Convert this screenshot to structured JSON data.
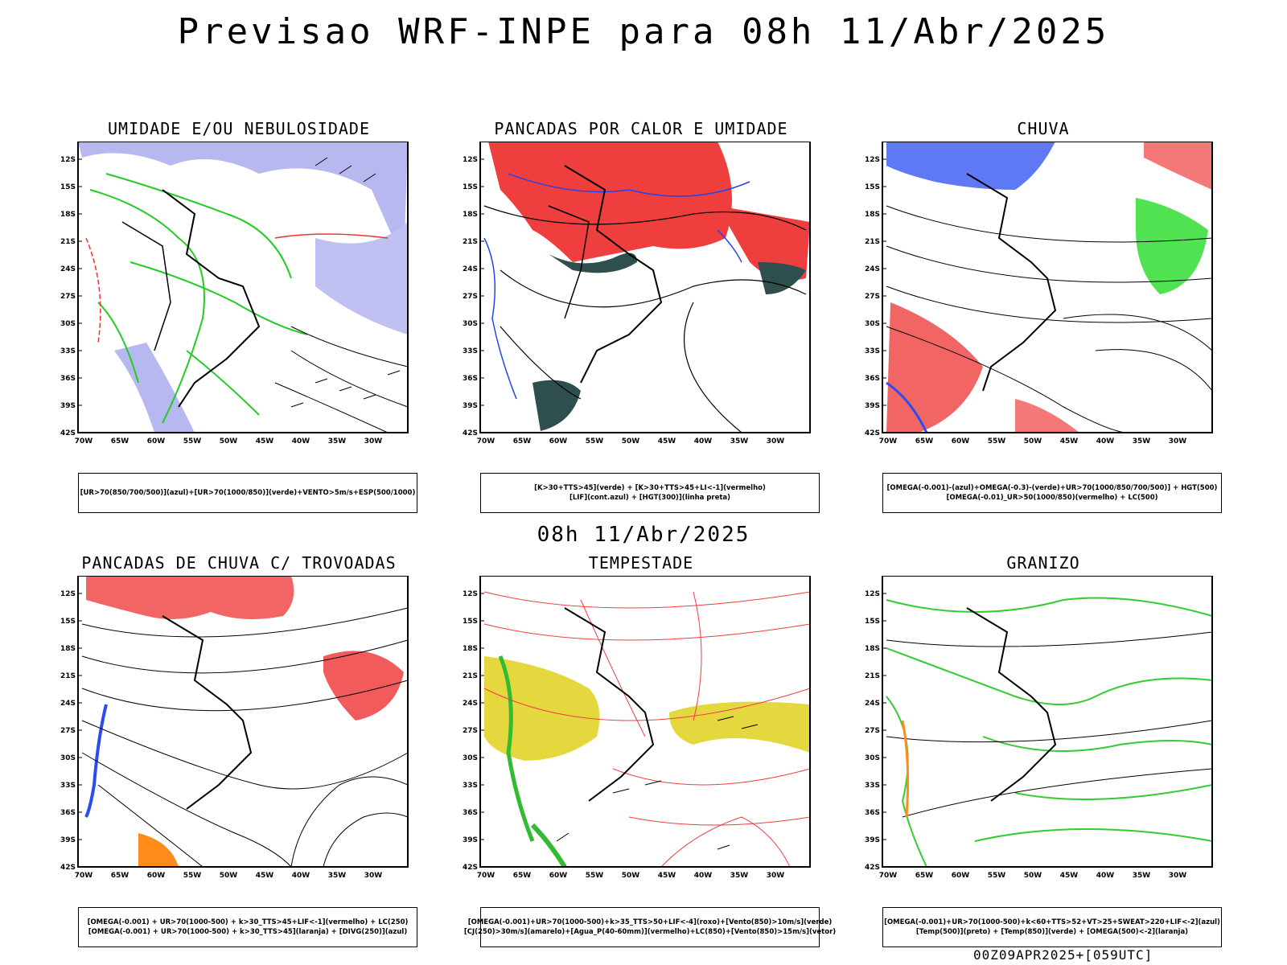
{
  "header": {
    "title": "Previsao WRF-INPE  para 08h 11/Abr/2025"
  },
  "mid_time": "08h 11/Abr/2025",
  "footer_stamp": "00Z09APR2025+[059UTC]",
  "axes": {
    "lat_labels": [
      "12S",
      "15S",
      "18S",
      "21S",
      "24S",
      "27S",
      "30S",
      "33S",
      "36S",
      "39S",
      "42S"
    ],
    "lon_labels": [
      "70W",
      "65W",
      "60W",
      "55W",
      "50W",
      "45W",
      "40W",
      "35W",
      "30W"
    ]
  },
  "panels": [
    {
      "title": "UMIDADE E/OU NEBULOSIDADE",
      "legend": [
        "[UR>70(850/700/500)](azul)+[UR>70(1000/850)](verde)+VENTO>5m/s+ESP(500/1000)"
      ]
    },
    {
      "title": "PANCADAS POR CALOR E UMIDADE",
      "legend": [
        "[K>30+TTS>45](verde) + [K>30+TTS>45+LI<-1](vermelho)",
        "[LIF](cont.azul) + [HGT(300)](linha preta)"
      ]
    },
    {
      "title": "CHUVA",
      "legend": [
        "[OMEGA(-0.001)-(azul)+OMEGA(-0.3)-(verde)+UR>70(1000/850/700/500)] + HGT(500)",
        "[OMEGA(-0.01)_UR>50(1000/850)(vermelho) + LC(500)"
      ]
    },
    {
      "title": "PANCADAS DE CHUVA C/ TROVOADAS",
      "legend": [
        "[OMEGA(-0.001) + UR>70(1000-500) + k>30_TTS>45+LIF<-1](vermelho) + LC(250)",
        "[OMEGA(-0.001) + UR>70(1000-500) + k>30_TTS>45](laranja) + [DIVG(250)](azul)"
      ]
    },
    {
      "title": "TEMPESTADE",
      "legend": [
        "[OMEGA(-0.001)+UR>70(1000-500)+k>35_TTS>50+LIF<-4](roxo)+[Vento(850)>10m/s](verde)",
        "[CJ(250)>30m/s](amarelo)+[Agua_P(40-60mm)](vermelho)+LC(850)+[Vento(850)>15m/s](vetor)"
      ]
    },
    {
      "title": "GRANIZO",
      "legend": [
        "[OMEGA(-0.001)+UR>70(1000-500)+k<60+TTS>52+VT>25+SWEAT>220+LIF<-2](azul)",
        "[Temp(500)](preto) + [Temp(850)](verde) + [OMEGA(500)<-2](laranja)"
      ]
    }
  ]
}
